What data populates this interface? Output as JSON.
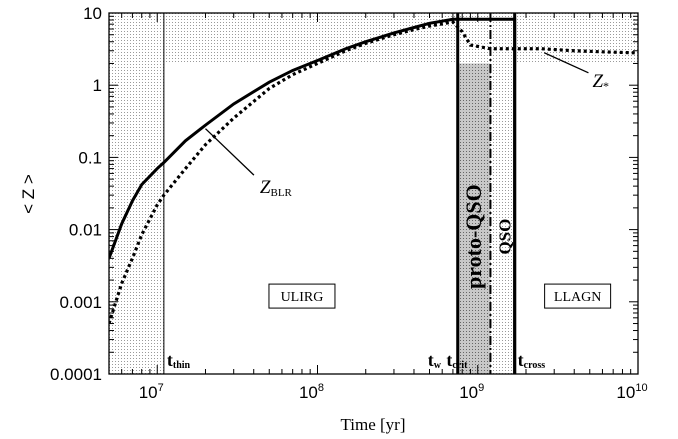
{
  "chart_data": {
    "type": "line",
    "title": "",
    "xlabel": "Time [yr]",
    "ylabel": "< Z >",
    "xscale": "log",
    "yscale": "log",
    "xlim": [
      5000000,
      10000000000
    ],
    "ylim": [
      0.0001,
      10
    ],
    "x_ticks": [
      {
        "value": 10000000,
        "base": "10",
        "exp": "7"
      },
      {
        "value": 100000000,
        "base": "10",
        "exp": "8"
      },
      {
        "value": 1000000000,
        "base": "10",
        "exp": "9"
      },
      {
        "value": 10000000000,
        "base": "10",
        "exp": "10"
      }
    ],
    "y_ticks": [
      {
        "value": 0.0001,
        "label": "0.0001"
      },
      {
        "value": 0.001,
        "label": "0.001"
      },
      {
        "value": 0.01,
        "label": "0.01"
      },
      {
        "value": 0.1,
        "label": "0.1"
      },
      {
        "value": 1,
        "label": "1"
      },
      {
        "value": 10,
        "label": "10"
      }
    ],
    "series": [
      {
        "name": "Z_BLR",
        "style": "solid",
        "x": [
          5000000,
          6000000,
          7000000,
          8000000,
          10000000,
          11000000,
          15000000,
          20000000,
          30000000,
          50000000,
          70000000,
          100000000,
          150000000,
          200000000,
          300000000,
          400000000,
          500000000,
          700000000,
          1700000000,
          1700000000
        ],
        "y": [
          0.004,
          0.012,
          0.025,
          0.042,
          0.07,
          0.085,
          0.17,
          0.28,
          0.55,
          1.1,
          1.6,
          2.2,
          3.2,
          4.0,
          5.3,
          6.3,
          7.2,
          8.2,
          8.2,
          0.0001
        ]
      },
      {
        "name": "Z_*",
        "style": "dotted",
        "x": [
          5000000,
          6000000,
          7000000,
          8000000,
          10000000,
          11000000,
          15000000,
          20000000,
          30000000,
          50000000,
          70000000,
          100000000,
          150000000,
          200000000,
          300000000,
          400000000,
          500000000,
          700000000,
          800000000,
          900000000,
          1200000000,
          1700000000,
          2500000000,
          4000000000,
          6000000000,
          10000000000
        ],
        "y": [
          0.0005,
          0.0018,
          0.004,
          0.0085,
          0.022,
          0.03,
          0.07,
          0.15,
          0.35,
          0.9,
          1.4,
          2.0,
          3.0,
          3.8,
          5.0,
          5.9,
          6.6,
          7.5,
          5.5,
          3.6,
          3.2,
          3.2,
          3.2,
          3.0,
          2.9,
          2.8
        ]
      }
    ],
    "shaded_regions": [
      {
        "kind": "light-dots",
        "x": [
          5000000,
          11000000
        ],
        "y": [
          0.0001,
          10
        ]
      },
      {
        "kind": "light-dots",
        "x": [
          5000000,
          10000000000
        ],
        "y": [
          2,
          10
        ]
      },
      {
        "kind": "dark",
        "x": [
          750000000,
          1200000000
        ],
        "y": [
          0.0001,
          2
        ]
      },
      {
        "kind": "light-dots",
        "x": [
          1200000000,
          1700000000
        ],
        "y": [
          0.0001,
          10
        ]
      }
    ],
    "vertical_lines": [
      {
        "x": 11000000,
        "style": "thin",
        "label": "t",
        "sub": "thin"
      },
      {
        "x": 750000000,
        "style": "thick",
        "label": "t",
        "sub": "w"
      },
      {
        "x": 1200000000,
        "style": "dash-dot",
        "label": "t",
        "sub": "crit"
      },
      {
        "x": 1700000000,
        "style": "thick",
        "label": "t",
        "sub": "cross"
      }
    ],
    "annotations": {
      "z_blr": {
        "label": "Z",
        "sub": "BLR",
        "point": [
          20000000,
          0.25
        ],
        "text_at": [
          45000000,
          0.032
        ]
      },
      "z_star": {
        "label": "Z",
        "sub": "*",
        "point": [
          2600000000,
          3.1
        ],
        "text_at": [
          6000000000,
          0.95
        ]
      },
      "regions": [
        {
          "text": "ULIRG",
          "x": 80000000,
          "y": 0.0012,
          "boxed": true
        },
        {
          "text": "LLAGN",
          "x": 4200000000,
          "y": 0.0012,
          "boxed": true
        }
      ],
      "phase_labels": [
        {
          "text": "proto-QSO",
          "x": 950000000,
          "y": 0.008
        },
        {
          "text": "QSO",
          "x": 1450000000,
          "y": 0.008
        }
      ]
    }
  }
}
